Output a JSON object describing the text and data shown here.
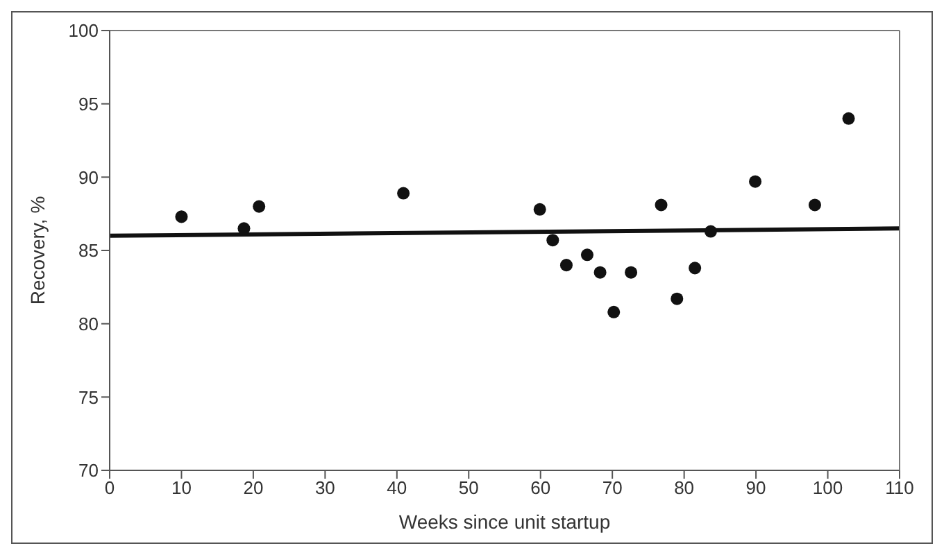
{
  "chart_data": {
    "type": "scatter",
    "xlabel": "Weeks since unit startup",
    "ylabel": "Recovery, %",
    "xlim": [
      0,
      110
    ],
    "xticks": [
      0,
      10,
      20,
      30,
      40,
      50,
      60,
      70,
      80,
      90,
      100,
      110
    ],
    "ylim": [
      70,
      100
    ],
    "yticks": [
      70,
      75,
      80,
      85,
      90,
      95,
      100
    ],
    "series": [
      {
        "marker": "circle",
        "color": "#111111",
        "x": [
          10,
          18.7,
          20.8,
          40.9,
          59.9,
          61.7,
          63.6,
          66.5,
          68.3,
          70.2,
          72.6,
          76.8,
          79,
          81.5,
          83.7,
          89.9,
          98.2,
          102.9
        ],
        "values": [
          87.3,
          86.5,
          88,
          88.9,
          87.8,
          85.7,
          84,
          84.7,
          83.5,
          80.8,
          83.5,
          88.1,
          81.7,
          83.8,
          86.3,
          89.7,
          88.1,
          94
        ]
      },
      {
        "type": "line",
        "marker": "none",
        "color": "#111111",
        "x": [
          0,
          110
        ],
        "values": [
          86,
          86.5
        ]
      }
    ]
  }
}
